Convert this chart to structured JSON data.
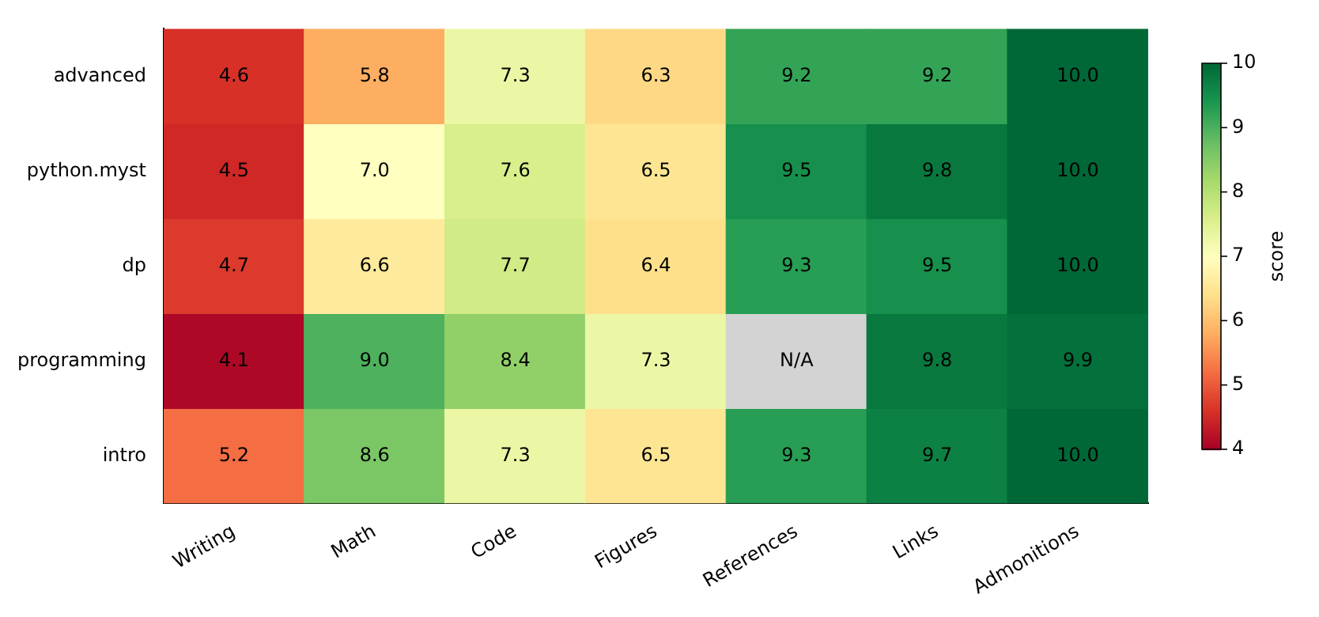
{
  "chart_data": {
    "type": "heatmap",
    "categories": [
      "Writing",
      "Math",
      "Code",
      "Figures",
      "References",
      "Links",
      "Admonitions"
    ],
    "y_categories": [
      "advanced",
      "python.myst",
      "dp",
      "programming",
      "intro"
    ],
    "cells": [
      [
        4.6,
        5.8,
        7.3,
        6.3,
        9.2,
        9.2,
        10.0
      ],
      [
        4.5,
        7.0,
        7.6,
        6.5,
        9.5,
        9.8,
        10.0
      ],
      [
        4.7,
        6.6,
        7.7,
        6.4,
        9.3,
        9.5,
        10.0
      ],
      [
        4.1,
        9.0,
        8.4,
        7.3,
        null,
        9.8,
        9.9
      ],
      [
        5.2,
        8.6,
        7.3,
        6.5,
        9.3,
        9.7,
        10.0
      ]
    ],
    "cell_labels": [
      [
        "4.6",
        "5.8",
        "7.3",
        "6.3",
        "9.2",
        "9.2",
        "10.0"
      ],
      [
        "4.5",
        "7.0",
        "7.6",
        "6.5",
        "9.5",
        "9.8",
        "10.0"
      ],
      [
        "4.7",
        "6.6",
        "7.7",
        "6.4",
        "9.3",
        "9.5",
        "10.0"
      ],
      [
        "4.1",
        "9.0",
        "8.4",
        "7.3",
        "N/A",
        "9.8",
        "9.9"
      ],
      [
        "5.2",
        "8.6",
        "7.3",
        "6.5",
        "9.3",
        "9.7",
        "10.0"
      ]
    ],
    "clim": [
      4,
      10
    ],
    "cticks": [
      4,
      5,
      6,
      7,
      8,
      9,
      10
    ],
    "clabel": "score"
  }
}
